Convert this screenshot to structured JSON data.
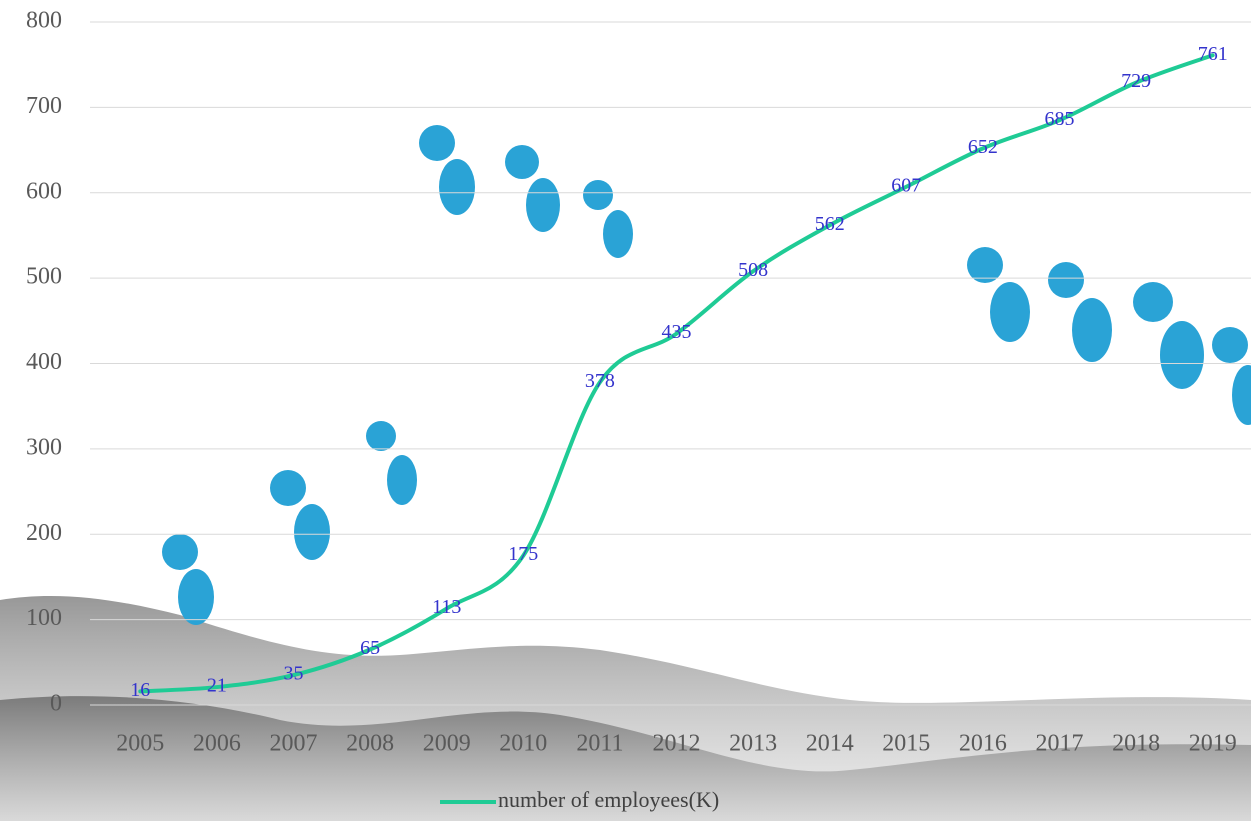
{
  "chart_data": {
    "type": "line",
    "categories": [
      "2005",
      "2006",
      "2007",
      "2008",
      "2009",
      "2010",
      "2011",
      "2012",
      "2013",
      "2014",
      "2015",
      "2016",
      "2017",
      "2018",
      "2019"
    ],
    "series": [
      {
        "name": "number of employees(K)",
        "color": "#1fcb95",
        "values": [
          16,
          21,
          35,
          65,
          113,
          175,
          378,
          435,
          508,
          562,
          607,
          652,
          685,
          729,
          761
        ]
      }
    ],
    "ylim": [
      0,
      800
    ],
    "yticks": [
      0,
      100,
      200,
      300,
      400,
      500,
      600,
      700,
      800
    ],
    "grid": true,
    "legend": "bottom"
  }
}
